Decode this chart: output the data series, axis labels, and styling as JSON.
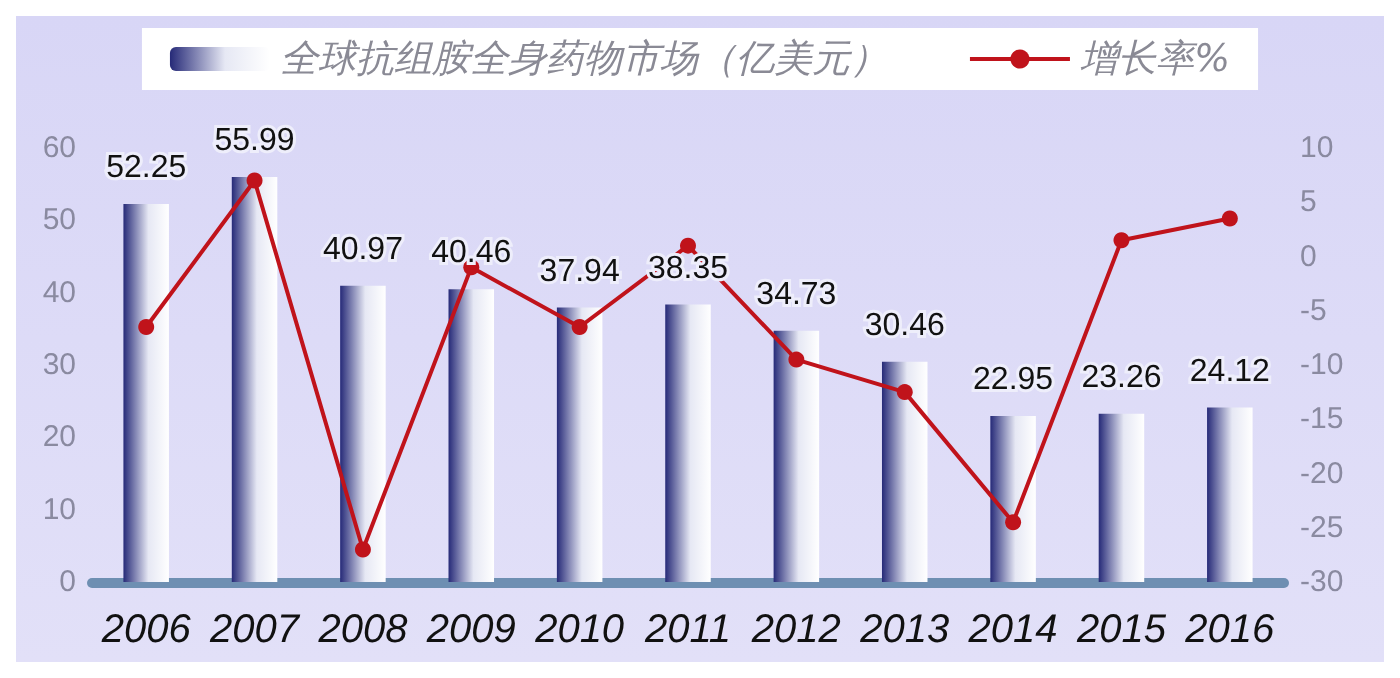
{
  "chart_data": {
    "type": "bar",
    "categories": [
      "2006",
      "2007",
      "2008",
      "2009",
      "2010",
      "2011",
      "2012",
      "2013",
      "2014",
      "2015",
      "2016"
    ],
    "series": [
      {
        "name": "全球抗组胺全身药物市场（亿美元）",
        "color": "#262a78",
        "values": [
          52.25,
          55.99,
          40.97,
          40.46,
          37.94,
          38.35,
          34.73,
          30.46,
          22.95,
          23.26,
          24.12
        ],
        "value_labels": [
          "52.25",
          "55.99",
          "40.97",
          "40.46",
          "37.94",
          "38.35",
          "34.73",
          "30.46",
          "22.95",
          "23.26",
          "24.12"
        ]
      },
      {
        "name": "增长率%",
        "type": "line",
        "axis": "y2",
        "color": "#c0131b",
        "values": [
          -6.5,
          7,
          -27,
          -1,
          -6.5,
          1,
          -9.5,
          -12.5,
          -24.5,
          1.5,
          3.5
        ]
      }
    ],
    "ylim": [
      0,
      60
    ],
    "yticks": [
      0,
      10,
      20,
      30,
      40,
      50,
      60
    ],
    "y2lim": [
      -30,
      10
    ],
    "y2ticks": [
      -30,
      -25,
      -20,
      -15,
      -10,
      -5,
      0,
      5,
      10
    ],
    "legend": "top",
    "grid": false,
    "marker": "circle",
    "line_style": "solid"
  }
}
